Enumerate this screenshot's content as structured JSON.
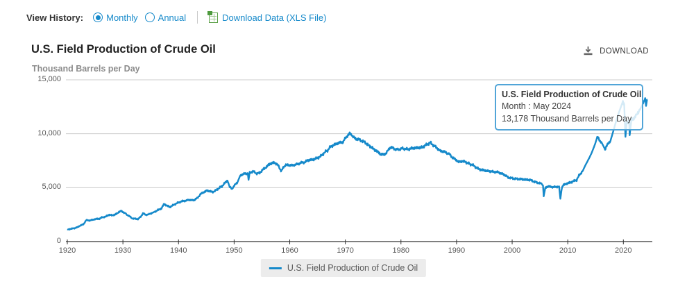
{
  "view_history": {
    "label": "View History:",
    "options": [
      {
        "label": "Monthly",
        "selected": true
      },
      {
        "label": "Annual",
        "selected": false
      }
    ],
    "download_link_label": "Download Data (XLS File)"
  },
  "header": {
    "title": "U.S. Field Production of Crude Oil",
    "download_label": "DOWNLOAD"
  },
  "tooltip": {
    "title": "U.S. Field Production of Crude Oil",
    "month_line": "Month : May 2024",
    "value_line": "13,178 Thousand Barrels per Day"
  },
  "legend": {
    "label": "U.S. Field Production of Crude Oil"
  },
  "colors": {
    "accent": "#1589ca",
    "line": "#1589ca",
    "grid": "#cccccc",
    "axis": "#333333",
    "tooltip_border": "#51a5d8"
  },
  "chart_data": {
    "type": "line",
    "title": "U.S. Field Production of Crude Oil",
    "ylabel": "Thousand Barrels per Day",
    "ylim": [
      0,
      15000
    ],
    "y_ticks": [
      15000,
      10000,
      5000,
      0
    ],
    "y_tick_labels": [
      "15,000",
      "10,000",
      "5,000",
      "0"
    ],
    "x_tick_years": [
      1920,
      1930,
      1940,
      1950,
      1960,
      1970,
      1980,
      1990,
      2000,
      2010,
      2020
    ],
    "x_tick_labels": [
      "1920",
      "1930",
      "1940",
      "1950",
      "1960",
      "1970",
      "1980",
      "1990",
      "2000",
      "2010",
      "2020"
    ],
    "x_range": [
      1920,
      2024.42
    ],
    "grid": true,
    "legend_position": "bottom",
    "highlight_point": {
      "month": "May 2024",
      "value": 13178
    },
    "series": [
      {
        "name": "U.S. Field Production of Crude Oil",
        "color": "#1589ca",
        "units": "Thousand Barrels per Day",
        "points": [
          [
            1920,
            1100
          ],
          [
            1920.6,
            1180
          ],
          [
            1921.2,
            1230
          ],
          [
            1921.8,
            1320
          ],
          [
            1922.3,
            1480
          ],
          [
            1922.9,
            1600
          ],
          [
            1923.4,
            1990
          ],
          [
            1924,
            1950
          ],
          [
            1924.6,
            2030
          ],
          [
            1925.2,
            2100
          ],
          [
            1925.8,
            2120
          ],
          [
            1926.3,
            2260
          ],
          [
            1926.9,
            2300
          ],
          [
            1927.4,
            2480
          ],
          [
            1928,
            2440
          ],
          [
            1928.6,
            2490
          ],
          [
            1929.2,
            2720
          ],
          [
            1929.7,
            2840
          ],
          [
            1930.2,
            2680
          ],
          [
            1930.8,
            2470
          ],
          [
            1931.3,
            2300
          ],
          [
            1931.7,
            2150
          ],
          [
            1932.2,
            2120
          ],
          [
            1932.7,
            2080
          ],
          [
            1933.2,
            2300
          ],
          [
            1933.6,
            2620
          ],
          [
            1934.1,
            2480
          ],
          [
            1934.7,
            2530
          ],
          [
            1935.2,
            2660
          ],
          [
            1935.8,
            2780
          ],
          [
            1936.3,
            2930
          ],
          [
            1936.9,
            3060
          ],
          [
            1937.4,
            3480
          ],
          [
            1937.9,
            3340
          ],
          [
            1938.4,
            3200
          ],
          [
            1938.9,
            3330
          ],
          [
            1939.4,
            3480
          ],
          [
            1940,
            3620
          ],
          [
            1940.6,
            3740
          ],
          [
            1941.2,
            3780
          ],
          [
            1941.8,
            3880
          ],
          [
            1942.3,
            3830
          ],
          [
            1942.9,
            3870
          ],
          [
            1943.4,
            4050
          ],
          [
            1944,
            4420
          ],
          [
            1944.6,
            4600
          ],
          [
            1945.1,
            4720
          ],
          [
            1945.6,
            4680
          ],
          [
            1946.1,
            4590
          ],
          [
            1946.7,
            4740
          ],
          [
            1947.2,
            4940
          ],
          [
            1947.8,
            5130
          ],
          [
            1948.3,
            5420
          ],
          [
            1948.8,
            5650
          ],
          [
            1949.2,
            5080
          ],
          [
            1949.6,
            4890
          ],
          [
            1950.1,
            5230
          ],
          [
            1950.6,
            5500
          ],
          [
            1951.1,
            6130
          ],
          [
            1951.7,
            6280
          ],
          [
            1952.2,
            6300
          ],
          [
            1952.45,
            6350
          ],
          [
            1952.6,
            5720
          ],
          [
            1952.8,
            6380
          ],
          [
            1953.4,
            6520
          ],
          [
            1954,
            6320
          ],
          [
            1954.6,
            6360
          ],
          [
            1955.1,
            6650
          ],
          [
            1955.7,
            6880
          ],
          [
            1956.2,
            7120
          ],
          [
            1956.8,
            7280
          ],
          [
            1957.3,
            7320
          ],
          [
            1957.8,
            7130
          ],
          [
            1958.2,
            6780
          ],
          [
            1958.5,
            6540
          ],
          [
            1958.9,
            6910
          ],
          [
            1959.3,
            7120
          ],
          [
            1959.8,
            7090
          ],
          [
            1960.3,
            7060
          ],
          [
            1960.9,
            7120
          ],
          [
            1961.4,
            7180
          ],
          [
            1962,
            7310
          ],
          [
            1962.6,
            7340
          ],
          [
            1963.2,
            7520
          ],
          [
            1963.8,
            7580
          ],
          [
            1964.4,
            7640
          ],
          [
            1965,
            7760
          ],
          [
            1965.6,
            7920
          ],
          [
            1966.2,
            8240
          ],
          [
            1966.8,
            8460
          ],
          [
            1967.3,
            8780
          ],
          [
            1967.9,
            8950
          ],
          [
            1968.4,
            9070
          ],
          [
            1969,
            9180
          ],
          [
            1969.6,
            9230
          ],
          [
            1970.1,
            9680
          ],
          [
            1970.85,
            10044
          ],
          [
            1971.3,
            9760
          ],
          [
            1971.9,
            9520
          ],
          [
            1972.4,
            9480
          ],
          [
            1973,
            9320
          ],
          [
            1973.6,
            9190
          ],
          [
            1974.1,
            8930
          ],
          [
            1974.7,
            8760
          ],
          [
            1975.2,
            8520
          ],
          [
            1975.8,
            8330
          ],
          [
            1976.3,
            8120
          ],
          [
            1976.9,
            8060
          ],
          [
            1977.4,
            8230
          ],
          [
            1978,
            8720
          ],
          [
            1978.6,
            8680
          ],
          [
            1979.1,
            8520
          ],
          [
            1979.7,
            8560
          ],
          [
            1980.2,
            8640
          ],
          [
            1980.8,
            8590
          ],
          [
            1981.4,
            8560
          ],
          [
            1982,
            8660
          ],
          [
            1982.6,
            8680
          ],
          [
            1983.2,
            8710
          ],
          [
            1983.8,
            8740
          ],
          [
            1984.4,
            8920
          ],
          [
            1985,
            9100
          ],
          [
            1985.3,
            9170
          ],
          [
            1985.9,
            8900
          ],
          [
            1986.4,
            8720
          ],
          [
            1987,
            8420
          ],
          [
            1987.6,
            8360
          ],
          [
            1988.2,
            8230
          ],
          [
            1988.8,
            8060
          ],
          [
            1989.3,
            7780
          ],
          [
            1989.9,
            7580
          ],
          [
            1990.4,
            7380
          ],
          [
            1991,
            7460
          ],
          [
            1991.6,
            7390
          ],
          [
            1992.2,
            7230
          ],
          [
            1992.8,
            7130
          ],
          [
            1993.4,
            6920
          ],
          [
            1994,
            6720
          ],
          [
            1994.6,
            6640
          ],
          [
            1995.2,
            6590
          ],
          [
            1995.8,
            6530
          ],
          [
            1996.4,
            6490
          ],
          [
            1997,
            6460
          ],
          [
            1997.6,
            6420
          ],
          [
            1998.2,
            6280
          ],
          [
            1998.8,
            6140
          ],
          [
            1999.3,
            5940
          ],
          [
            1999.9,
            5890
          ],
          [
            2000.4,
            5830
          ],
          [
            2001,
            5810
          ],
          [
            2001.6,
            5790
          ],
          [
            2002.2,
            5760
          ],
          [
            2002.8,
            5740
          ],
          [
            2003.4,
            5690
          ],
          [
            2004,
            5540
          ],
          [
            2004.6,
            5460
          ],
          [
            2005.2,
            5380
          ],
          [
            2005.55,
            5200
          ],
          [
            2005.67,
            4200
          ],
          [
            2005.95,
            4950
          ],
          [
            2006.3,
            5120
          ],
          [
            2006.9,
            5080
          ],
          [
            2007.4,
            5060
          ],
          [
            2008,
            5070
          ],
          [
            2008.45,
            5120
          ],
          [
            2008.67,
            3975
          ],
          [
            2008.95,
            5040
          ],
          [
            2009.3,
            5270
          ],
          [
            2009.9,
            5390
          ],
          [
            2010.4,
            5470
          ],
          [
            2011,
            5590
          ],
          [
            2011.6,
            5720
          ],
          [
            2012.1,
            6180
          ],
          [
            2012.7,
            6560
          ],
          [
            2013.2,
            7110
          ],
          [
            2013.8,
            7690
          ],
          [
            2014.3,
            8230
          ],
          [
            2014.9,
            9020
          ],
          [
            2015.3,
            9690
          ],
          [
            2015.7,
            9420
          ],
          [
            2016.1,
            9180
          ],
          [
            2016.7,
            8560
          ],
          [
            2017.1,
            8960
          ],
          [
            2017.7,
            9380
          ],
          [
            2018.2,
            10260
          ],
          [
            2018.8,
            11350
          ],
          [
            2019.3,
            12120
          ],
          [
            2019.92,
            13000
          ],
          [
            2020.15,
            12740
          ],
          [
            2020.37,
            9714
          ],
          [
            2020.6,
            10950
          ],
          [
            2020.95,
            11180
          ],
          [
            2021.05,
            11060
          ],
          [
            2021.13,
            9860
          ],
          [
            2021.45,
            11320
          ],
          [
            2022,
            11450
          ],
          [
            2022.6,
            11950
          ],
          [
            2023.1,
            12360
          ],
          [
            2023.6,
            12880
          ],
          [
            2023.92,
            13310
          ],
          [
            2024.08,
            12580
          ],
          [
            2024.25,
            13150
          ],
          [
            2024.33,
            13178
          ]
        ]
      }
    ]
  }
}
